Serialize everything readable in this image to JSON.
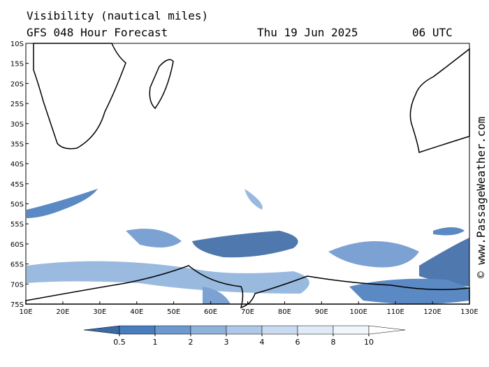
{
  "header": {
    "title": "Visibility (nautical miles)",
    "subtitle": "GFS 048 Hour Forecast",
    "date": "Thu 19 Jun 2025",
    "time": "06 UTC"
  },
  "map": {
    "lat_labels": [
      "10S",
      "15S",
      "20S",
      "25S",
      "30S",
      "35S",
      "40S",
      "45S",
      "50S",
      "55S",
      "60S",
      "65S",
      "70S",
      "75S"
    ],
    "lon_labels": [
      "10E",
      "20E",
      "30E",
      "40E",
      "50E",
      "60E",
      "70E",
      "80E",
      "90E",
      "100E",
      "110E",
      "120E",
      "130E"
    ]
  },
  "legend": {
    "levels": [
      0.5,
      1,
      2,
      3,
      4,
      6,
      8,
      10
    ],
    "colors": [
      "#3b6aa6",
      "#4a7dbd",
      "#6e99cf",
      "#8fb2dc",
      "#aec8e7",
      "#c9dbf0",
      "#e1ebf7",
      "#f1f6fc",
      "#ffffff"
    ]
  },
  "credit": "© www.PassageWeather.com"
}
